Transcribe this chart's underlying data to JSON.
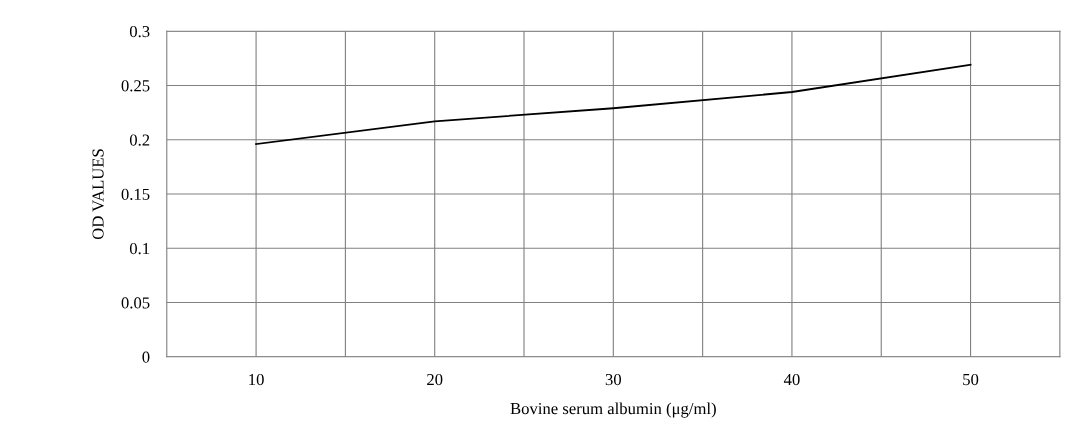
{
  "chart_data": {
    "type": "line",
    "xlabel": "Bovine serum albumin (μg/ml)",
    "ylabel": "OD VALUES",
    "categories": [
      "10",
      "20",
      "30",
      "40",
      "50"
    ],
    "series": [
      {
        "color": "#000000",
        "values": [
          0.196,
          0.217,
          0.229,
          0.244,
          0.269
        ]
      }
    ],
    "ylim": [
      0,
      0.3
    ],
    "yticks": [
      0,
      0.05,
      0.1,
      0.15,
      0.2,
      0.25,
      0.3
    ],
    "grid": true,
    "marker": "none",
    "line_style": "solid"
  }
}
